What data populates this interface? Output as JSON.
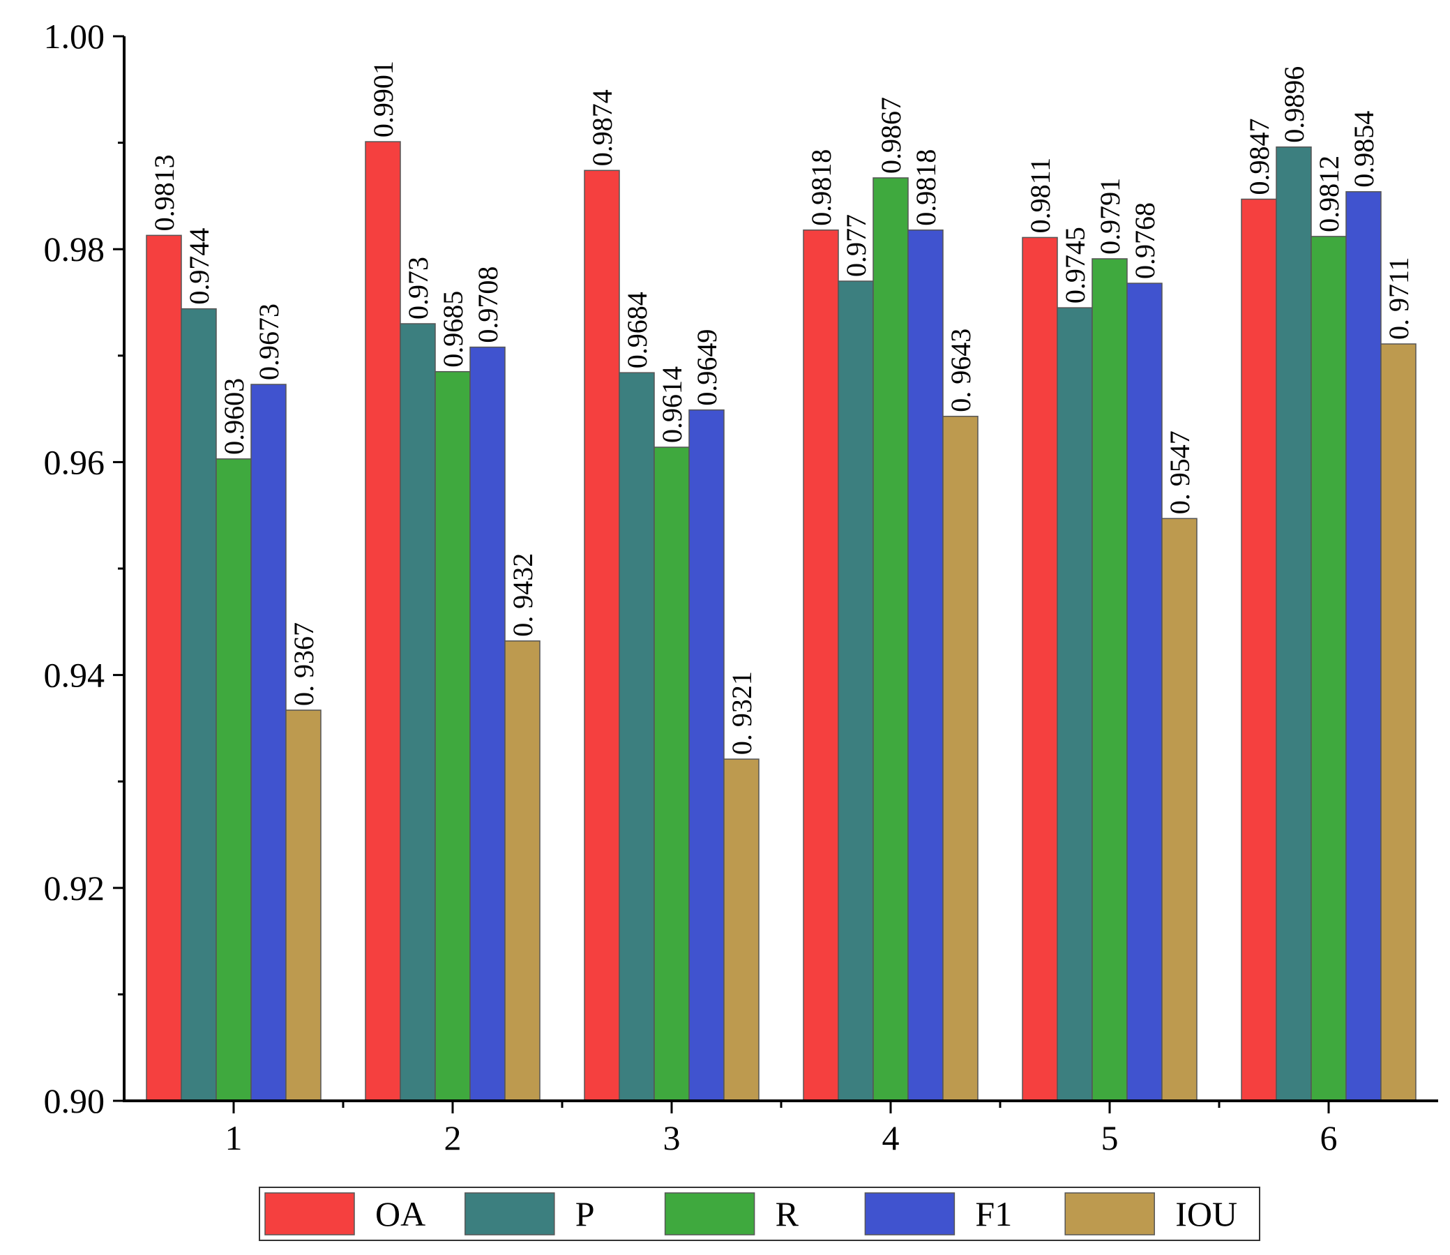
{
  "chart_data": {
    "type": "bar",
    "title": "",
    "xlabel": "",
    "ylabel": "",
    "categories": [
      "1",
      "2",
      "3",
      "4",
      "5",
      "6"
    ],
    "ylim": [
      0.9,
      1.0
    ],
    "y_ticks": [
      "0.90",
      "0.92",
      "0.94",
      "0.96",
      "0.98",
      "1.00"
    ],
    "grid": false,
    "legend_position": "bottom",
    "series": [
      {
        "name": "OA",
        "color": "#f5403f",
        "values": [
          0.9813,
          0.9901,
          0.9874,
          0.9818,
          0.9811,
          0.9847
        ],
        "labels": [
          "0.9813",
          "0.9901",
          "0.9874",
          "0.9818",
          "0.9811",
          "0.9847"
        ]
      },
      {
        "name": "P",
        "color": "#3c7f7f",
        "values": [
          0.9744,
          0.973,
          0.9684,
          0.977,
          0.9745,
          0.9896
        ],
        "labels": [
          "0.9744",
          "0.973",
          "0.9684",
          "0.977",
          "0.9745",
          "0.9896"
        ]
      },
      {
        "name": "R",
        "color": "#3fa93e",
        "values": [
          0.9603,
          0.9685,
          0.9614,
          0.9867,
          0.9791,
          0.9812
        ],
        "labels": [
          "0.9603",
          "0.9685",
          "0.9614",
          "0.9867",
          "0.9791",
          "0.9812"
        ]
      },
      {
        "name": "F1",
        "color": "#4053cf",
        "values": [
          0.9673,
          0.9708,
          0.9649,
          0.9818,
          0.9768,
          0.9854
        ],
        "labels": [
          "0.9673",
          "0.9708",
          "0.9649",
          "0.9818",
          "0.9768",
          "0.9854"
        ]
      },
      {
        "name": "IOU",
        "color": "#bd9a4f",
        "values": [
          0.9367,
          0.9432,
          0.9321,
          0.9643,
          0.9547,
          0.9711
        ],
        "labels": [
          "0. 9367",
          "0. 9432",
          "0. 9321",
          "0. 9643",
          "0. 9547",
          "0. 9711"
        ]
      }
    ]
  }
}
